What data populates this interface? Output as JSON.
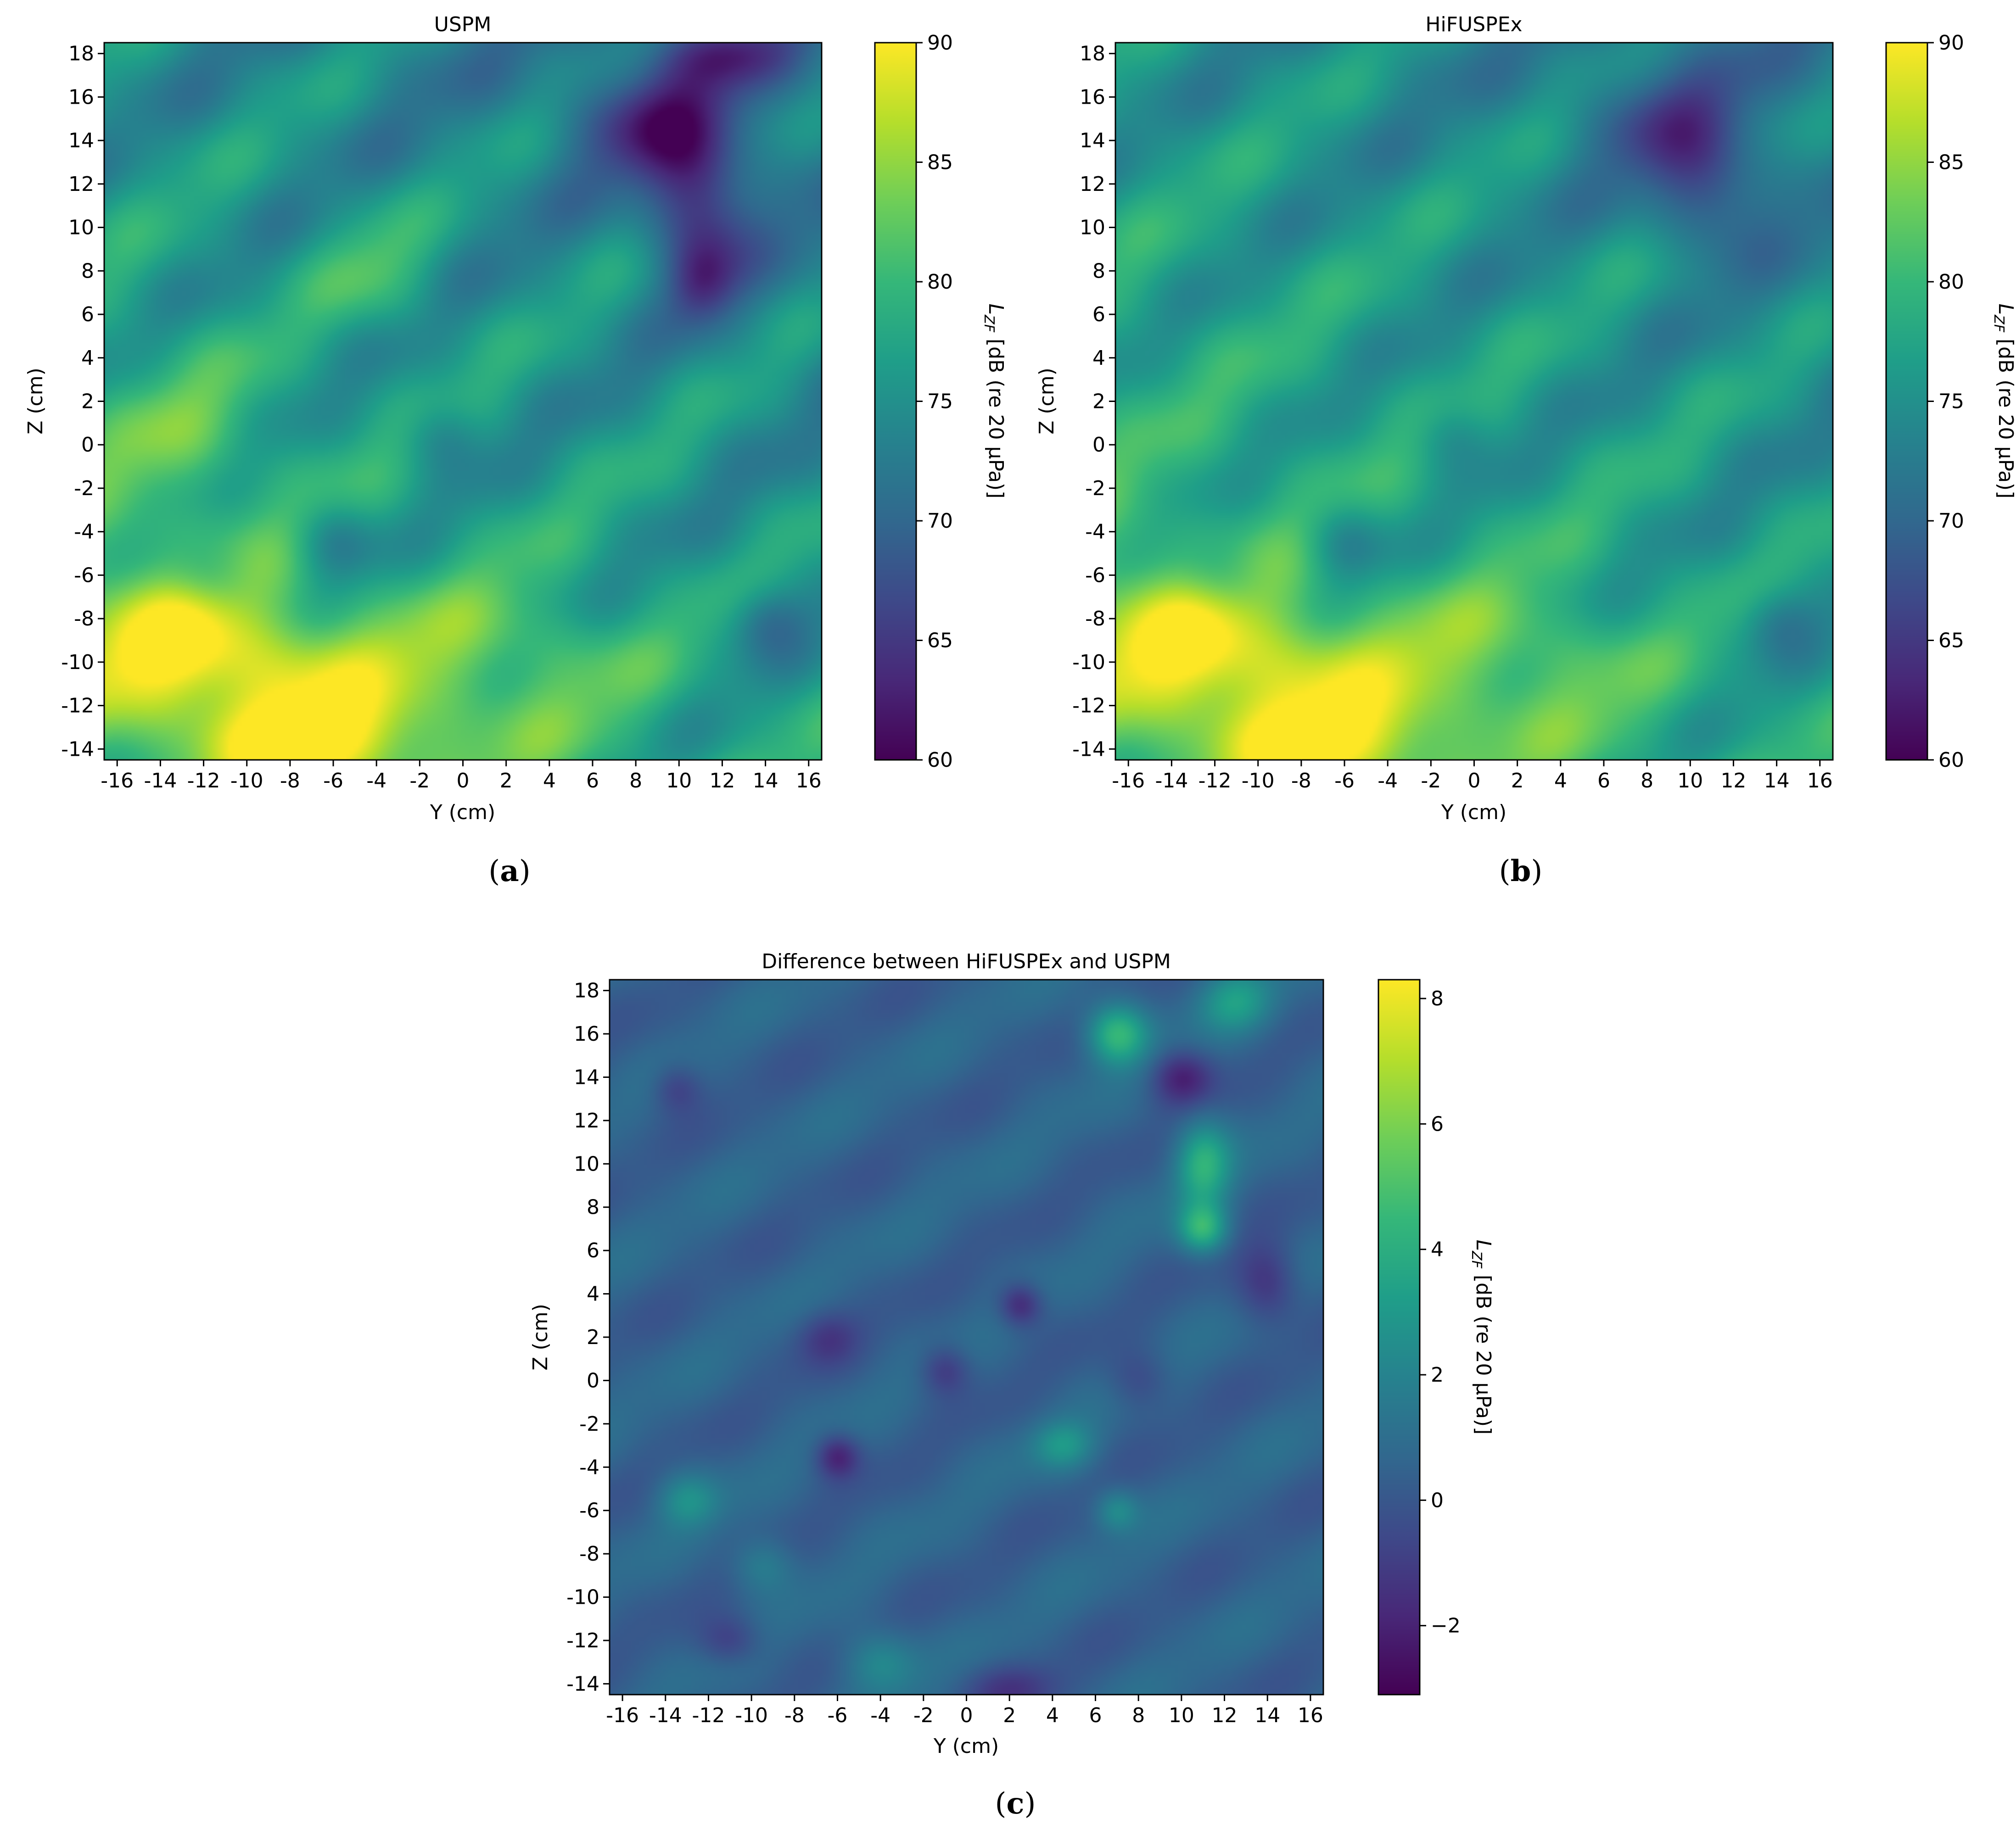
{
  "figure": {
    "colormap": "viridis",
    "colormap_stops": [
      "#440154",
      "#482878",
      "#3e4989",
      "#31688e",
      "#26828e",
      "#1f9e89",
      "#35b779",
      "#6ece58",
      "#b5de2b",
      "#fde725"
    ],
    "captions": {
      "a": {
        "open": "(",
        "letter": "a",
        "close": ")"
      },
      "b": {
        "open": "(",
        "letter": "b",
        "close": ")"
      },
      "c": {
        "open": "(",
        "letter": "c",
        "close": ")"
      }
    }
  },
  "chart_data": [
    {
      "id": "a",
      "type": "heatmap",
      "title": "USPM",
      "xlabel": "Y (cm)",
      "ylabel": "Z (cm)",
      "xlim": [
        -16.6,
        16.6
      ],
      "ylim": [
        -14.5,
        18.5
      ],
      "xticks": [
        -16,
        -14,
        -12,
        -10,
        -8,
        -6,
        -4,
        -2,
        0,
        2,
        4,
        6,
        8,
        10,
        12,
        14,
        16
      ],
      "yticks": [
        18,
        16,
        14,
        12,
        10,
        8,
        6,
        4,
        2,
        0,
        -2,
        -4,
        -6,
        -8,
        -10,
        -12,
        -14
      ],
      "colorbar": {
        "label_var": "L",
        "label_sub": "ZF",
        "label_rest": " [dB (re 20 µPa)]",
        "range": [
          60,
          90
        ],
        "ticks": [
          "60",
          "65",
          "70",
          "75",
          "80",
          "85",
          "90"
        ],
        "tick_values": [
          60,
          65,
          70,
          75,
          80,
          85,
          90
        ]
      },
      "field": {
        "base": 76.5,
        "diag_direction": [
          -0.62,
          0.78
        ],
        "diag_amplitude": 3.2,
        "diag_period": 7.5,
        "gradient": [
          -0.1,
          -0.18
        ],
        "blobs": [
          {
            "y": -10.0,
            "z": -10.5,
            "amp": 10.0,
            "sy": 5.0,
            "sz": 2.4
          },
          {
            "y": -6.0,
            "z": -14.0,
            "amp": 9.0,
            "sy": 4.0,
            "sz": 1.6
          },
          {
            "y": -14.0,
            "z": -7.5,
            "amp": 6.0,
            "sy": 3.0,
            "sz": 2.5
          },
          {
            "y": 2.0,
            "z": -10.0,
            "amp": 5.0,
            "sy": 4.0,
            "sz": 2.5
          },
          {
            "y": -13.0,
            "z": 0.0,
            "amp": 4.0,
            "sy": 3.0,
            "sz": 3.0
          },
          {
            "y": 11.0,
            "z": 11.0,
            "amp": -11.0,
            "sy": 1.6,
            "sz": 2.2
          },
          {
            "y": 11.0,
            "z": 7.5,
            "amp": -7.0,
            "sy": 1.1,
            "sz": 1.3
          },
          {
            "y": 9.0,
            "z": 15.0,
            "amp": -9.0,
            "sy": 2.5,
            "sz": 2.0
          },
          {
            "y": 12.0,
            "z": 18.0,
            "amp": -6.0,
            "sy": 2.0,
            "sz": 1.0
          },
          {
            "y": 14.0,
            "z": -8.0,
            "amp": -6.0,
            "sy": 1.2,
            "sz": 1.2
          },
          {
            "y": -6.0,
            "z": -4.5,
            "amp": -5.0,
            "sy": 1.3,
            "sz": 1.3
          },
          {
            "y": -12.0,
            "z": -6.0,
            "amp": -5.0,
            "sy": 1.5,
            "sz": 1.3
          },
          {
            "y": -1.0,
            "z": 0.5,
            "amp": -4.0,
            "sy": 1.3,
            "sz": 1.1
          },
          {
            "y": -4.0,
            "z": 8.0,
            "amp": 4.0,
            "sy": 2.0,
            "sz": 2.0
          }
        ]
      }
    },
    {
      "id": "b",
      "type": "heatmap",
      "title": "HiFUSPEx",
      "xlabel": "Y (cm)",
      "ylabel": "Z (cm)",
      "xlim": [
        -16.6,
        16.6
      ],
      "ylim": [
        -14.5,
        18.5
      ],
      "xticks": [
        -16,
        -14,
        -12,
        -10,
        -8,
        -6,
        -4,
        -2,
        0,
        2,
        4,
        6,
        8,
        10,
        12,
        14,
        16
      ],
      "yticks": [
        18,
        16,
        14,
        12,
        10,
        8,
        6,
        4,
        2,
        0,
        -2,
        -4,
        -6,
        -8,
        -10,
        -12,
        -14
      ],
      "colorbar": {
        "label_var": "L",
        "label_sub": "ZF",
        "label_rest": " [dB (re 20 µPa)]",
        "range": [
          60,
          90
        ],
        "ticks": [
          "60",
          "65",
          "70",
          "75",
          "80",
          "85",
          "90"
        ],
        "tick_values": [
          60,
          65,
          70,
          75,
          80,
          85,
          90
        ]
      },
      "field": {
        "base": 77.0,
        "diag_direction": [
          -0.62,
          0.78
        ],
        "diag_amplitude": 3.0,
        "diag_period": 7.5,
        "gradient": [
          -0.1,
          -0.17
        ],
        "blobs": [
          {
            "y": -10.0,
            "z": -10.5,
            "amp": 9.0,
            "sy": 5.0,
            "sz": 2.4
          },
          {
            "y": -6.0,
            "z": -14.0,
            "amp": 8.0,
            "sy": 4.0,
            "sz": 1.6
          },
          {
            "y": -14.0,
            "z": -7.5,
            "amp": 6.0,
            "sy": 3.0,
            "sz": 2.5
          },
          {
            "y": 2.0,
            "z": -10.0,
            "amp": 5.0,
            "sy": 4.0,
            "sz": 2.5
          },
          {
            "y": 11.0,
            "z": 11.5,
            "amp": -8.0,
            "sy": 1.8,
            "sz": 1.8
          },
          {
            "y": 9.0,
            "z": 15.0,
            "amp": -6.5,
            "sy": 2.5,
            "sz": 2.0
          },
          {
            "y": 14.0,
            "z": -8.0,
            "amp": -5.0,
            "sy": 1.2,
            "sz": 1.2
          },
          {
            "y": -6.0,
            "z": -4.5,
            "amp": -5.0,
            "sy": 1.3,
            "sz": 1.3
          },
          {
            "y": -12.0,
            "z": -6.0,
            "amp": -5.0,
            "sy": 1.5,
            "sz": 1.3
          },
          {
            "y": -1.0,
            "z": 0.5,
            "amp": -3.5,
            "sy": 1.3,
            "sz": 1.1
          }
        ]
      }
    },
    {
      "id": "c",
      "type": "heatmap",
      "title": "Difference between HiFUSPEx and USPM",
      "xlabel": "Y (cm)",
      "ylabel": "Z (cm)",
      "xlim": [
        -16.6,
        16.6
      ],
      "ylim": [
        -14.5,
        18.5
      ],
      "xticks": [
        -16,
        -14,
        -12,
        -10,
        -8,
        -6,
        -4,
        -2,
        0,
        2,
        4,
        6,
        8,
        10,
        12,
        14,
        16
      ],
      "yticks": [
        18,
        16,
        14,
        12,
        10,
        8,
        6,
        4,
        2,
        0,
        -2,
        -4,
        -6,
        -8,
        -10,
        -12,
        -14
      ],
      "colorbar": {
        "label_var": "L",
        "label_sub": "ZF",
        "label_rest": " [dB (re 20 µPa)]",
        "range": [
          -3.1,
          8.3
        ],
        "ticks": [
          "−2",
          "0",
          "2",
          "4",
          "6",
          "8"
        ],
        "tick_values": [
          -2,
          0,
          2,
          4,
          6,
          8
        ]
      },
      "field": {
        "base": 0.5,
        "diag_direction": [
          -0.55,
          0.83
        ],
        "diag_amplitude": 0.5,
        "diag_period": 6.0,
        "gradient": [
          0.0,
          0.0
        ],
        "blobs": [
          {
            "y": 7.0,
            "z": 16.0,
            "amp": 4.2,
            "sy": 1.0,
            "sz": 1.0
          },
          {
            "y": 11.0,
            "z": 10.0,
            "amp": 3.5,
            "sy": 0.9,
            "sz": 1.4
          },
          {
            "y": 11.0,
            "z": 7.0,
            "amp": 3.8,
            "sy": 0.8,
            "sz": 0.8
          },
          {
            "y": 12.5,
            "z": 17.5,
            "amp": 2.5,
            "sy": 1.2,
            "sz": 1.0
          },
          {
            "y": 4.5,
            "z": -3.0,
            "amp": 2.2,
            "sy": 1.0,
            "sz": 0.8
          },
          {
            "y": 7.0,
            "z": -6.0,
            "amp": 2.0,
            "sy": 0.7,
            "sz": 0.7
          },
          {
            "y": -13.0,
            "z": -5.5,
            "amp": 2.0,
            "sy": 1.0,
            "sz": 0.9
          },
          {
            "y": -4.0,
            "z": -13.0,
            "amp": 2.0,
            "sy": 1.2,
            "sz": 1.0
          },
          {
            "y": -9.5,
            "z": -8.5,
            "amp": 1.5,
            "sy": 1.0,
            "sz": 0.9
          },
          {
            "y": 10.0,
            "z": 14.0,
            "amp": -2.5,
            "sy": 1.0,
            "sz": 0.9
          },
          {
            "y": 14.0,
            "z": 4.5,
            "amp": -2.0,
            "sy": 1.0,
            "sz": 1.3
          },
          {
            "y": 2.5,
            "z": 3.5,
            "amp": -2.5,
            "sy": 0.7,
            "sz": 0.7
          },
          {
            "y": -6.0,
            "z": -3.5,
            "amp": -2.5,
            "sy": 0.7,
            "sz": 0.7
          },
          {
            "y": -1.0,
            "z": 0.5,
            "amp": -1.8,
            "sy": 0.8,
            "sz": 0.8
          },
          {
            "y": -6.5,
            "z": 2.0,
            "amp": -1.5,
            "sy": 1.0,
            "sz": 0.9
          },
          {
            "y": -13.5,
            "z": 13.5,
            "amp": -1.5,
            "sy": 0.8,
            "sz": 0.8
          },
          {
            "y": -11.0,
            "z": -12.0,
            "amp": -1.5,
            "sy": 1.0,
            "sz": 0.8
          },
          {
            "y": 2.0,
            "z": -14.2,
            "amp": -1.5,
            "sy": 1.5,
            "sz": 0.8
          },
          {
            "y": 8.0,
            "z": 0.0,
            "amp": -1.2,
            "sy": 1.0,
            "sz": 1.0
          }
        ]
      }
    }
  ]
}
